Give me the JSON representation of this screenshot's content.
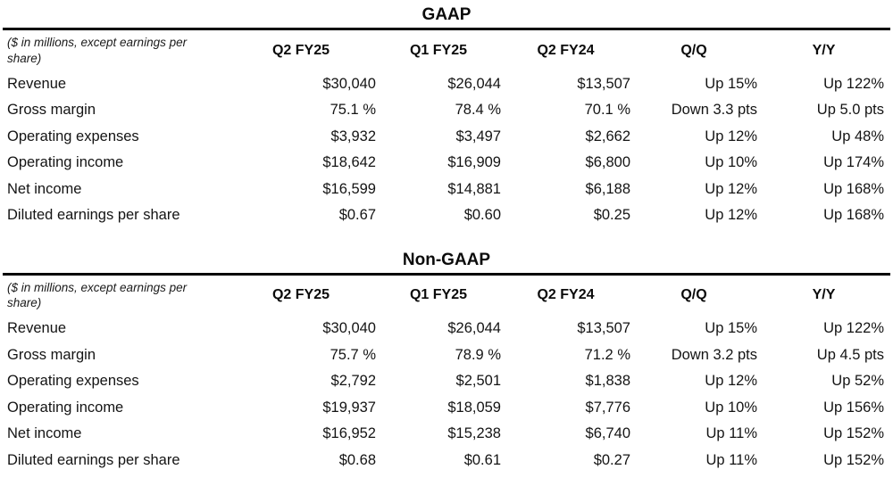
{
  "page": {
    "background": "#ffffff",
    "text_color": "#141414",
    "rule_color": "#000000"
  },
  "note": "($ in millions, except earnings per share)",
  "columns": [
    "Q2 FY25",
    "Q1 FY25",
    "Q2 FY24",
    "Q/Q",
    "Y/Y"
  ],
  "tables": [
    {
      "title": "GAAP",
      "rows": [
        {
          "label": "Revenue",
          "values": [
            "$30,040",
            "$26,044",
            "$13,507",
            "Up 15%",
            "Up 122%"
          ]
        },
        {
          "label": "Gross margin",
          "values": [
            "75.1 %",
            "78.4 %",
            "70.1 %",
            "Down 3.3 pts",
            "Up 5.0 pts"
          ]
        },
        {
          "label": "Operating expenses",
          "values": [
            "$3,932",
            "$3,497",
            "$2,662",
            "Up 12%",
            "Up 48%"
          ]
        },
        {
          "label": "Operating income",
          "values": [
            "$18,642",
            "$16,909",
            "$6,800",
            "Up 10%",
            "Up 174%"
          ]
        },
        {
          "label": "Net income",
          "values": [
            "$16,599",
            "$14,881",
            "$6,188",
            "Up 12%",
            "Up 168%"
          ]
        },
        {
          "label": "Diluted earnings per share",
          "values": [
            "$0.67",
            "$0.60",
            "$0.25",
            "Up 12%",
            "Up 168%"
          ]
        }
      ]
    },
    {
      "title": "Non-GAAP",
      "rows": [
        {
          "label": "Revenue",
          "values": [
            "$30,040",
            "$26,044",
            "$13,507",
            "Up 15%",
            "Up 122%"
          ]
        },
        {
          "label": "Gross margin",
          "values": [
            "75.7 %",
            "78.9 %",
            "71.2 %",
            "Down 3.2 pts",
            "Up 4.5 pts"
          ]
        },
        {
          "label": "Operating expenses",
          "values": [
            "$2,792",
            "$2,501",
            "$1,838",
            "Up 12%",
            "Up 52%"
          ]
        },
        {
          "label": "Operating income",
          "values": [
            "$19,937",
            "$18,059",
            "$7,776",
            "Up 10%",
            "Up 156%"
          ]
        },
        {
          "label": "Net income",
          "values": [
            "$16,952",
            "$15,238",
            "$6,740",
            "Up 11%",
            "Up 152%"
          ]
        },
        {
          "label": "Diluted earnings per share",
          "values": [
            "$0.68",
            "$0.61",
            "$0.27",
            "Up 11%",
            "Up 152%"
          ]
        }
      ]
    }
  ]
}
